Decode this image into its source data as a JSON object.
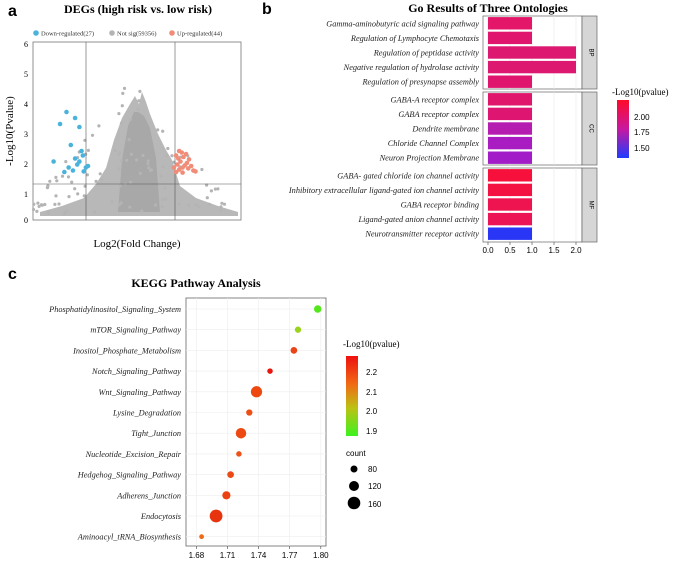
{
  "chart_data": [
    {
      "panel": "a",
      "type": "scatter",
      "title": "DEGs (high risk vs. low risk)",
      "xlabel": "Log2(Fold Change)",
      "ylabel": "-Log10(Pvalue)",
      "ylim": [
        0,
        6
      ],
      "yticks": [
        "0",
        "1",
        "2",
        "3",
        "4",
        "5",
        "6"
      ],
      "legend": [
        {
          "label": "Down-regulated(27)",
          "color": "#4ab3dc"
        },
        {
          "label": "Not sig(59356)",
          "color": "#b4b4b4"
        },
        {
          "label": "Up-regulated(44)",
          "color": "#f08c78"
        }
      ],
      "up_points": [
        [
          1.05,
          1.4
        ],
        [
          1.12,
          1.48
        ],
        [
          1.2,
          1.55
        ],
        [
          1.08,
          1.65
        ],
        [
          1.25,
          1.62
        ],
        [
          1.15,
          1.75
        ],
        [
          1.3,
          1.7
        ],
        [
          1.1,
          1.85
        ],
        [
          1.22,
          1.9
        ],
        [
          1.35,
          1.82
        ],
        [
          1.05,
          1.95
        ],
        [
          1.18,
          2.05
        ],
        [
          1.28,
          2.0
        ],
        [
          1.4,
          1.6
        ],
        [
          1.12,
          2.1
        ],
        [
          1.0,
          1.55
        ],
        [
          1.33,
          1.52
        ],
        [
          1.45,
          1.45
        ],
        [
          1.2,
          1.38
        ],
        [
          1.5,
          1.42
        ]
      ],
      "down_points": [
        [
          -1.5,
          3.4
        ],
        [
          -1.3,
          3.2
        ],
        [
          -1.2,
          2.9
        ],
        [
          -1.65,
          3.0
        ],
        [
          -1.4,
          2.3
        ],
        [
          -1.15,
          2.1
        ],
        [
          -1.8,
          1.75
        ],
        [
          -1.25,
          1.65
        ],
        [
          -1.05,
          1.55
        ],
        [
          -1.35,
          1.45
        ],
        [
          -1.1,
          1.42
        ],
        [
          -1.2,
          1.75
        ],
        [
          -1.45,
          1.55
        ],
        [
          -1.0,
          1.6
        ],
        [
          -1.3,
          1.85
        ],
        [
          -1.55,
          1.4
        ],
        [
          -1.12,
          1.95
        ]
      ]
    },
    {
      "panel": "b",
      "type": "bar",
      "title": "Go Results of Three Ontologies",
      "xticks": [
        "0.0",
        "0.5",
        "1.0",
        "1.5",
        "2.0"
      ],
      "xlim": [
        0,
        2.2
      ],
      "colorbar_title": "-Log10(pvalue)",
      "colorbar_ticks": [
        "2.00",
        "1.75",
        "1.50"
      ],
      "groups": [
        {
          "label": "BP",
          "items": [
            {
              "term": "Gamma-aminobutyric acid signaling pathway",
              "value": 1.0,
              "color": "#e4166a"
            },
            {
              "term": "Regulation of Lymphocyte Chemotaxis",
              "value": 1.0,
              "color": "#e0166e"
            },
            {
              "term": "Regulation of peptidase activity",
              "value": 2.0,
              "color": "#dc1870"
            },
            {
              "term": "Negative regulation of hydrolase activity",
              "value": 2.0,
              "color": "#dc1870"
            },
            {
              "term": "Regulation of presynapse assembly",
              "value": 1.0,
              "color": "#e0166e"
            }
          ]
        },
        {
          "label": "CC",
          "items": [
            {
              "term": "GABA-A receptor complex",
              "value": 1.0,
              "color": "#e0166c"
            },
            {
              "term": "GABA receptor complex",
              "value": 1.0,
              "color": "#de1672"
            },
            {
              "term": "Dendrite membrane",
              "value": 1.0,
              "color": "#b51cb0"
            },
            {
              "term": "Chloride Channel Complex",
              "value": 1.0,
              "color": "#a81cc2"
            },
            {
              "term": "Neuron Projection Membrane",
              "value": 1.0,
              "color": "#a21dc8"
            }
          ]
        },
        {
          "label": "MF",
          "items": [
            {
              "term": "GABA- gated chloride ion channel activity",
              "value": 1.0,
              "color": "#f8103c"
            },
            {
              "term": "Inhibitory extracellular ligand-gated ion channel activity",
              "value": 1.0,
              "color": "#f41242"
            },
            {
              "term": "GABA receptor binding",
              "value": 1.0,
              "color": "#ee1450"
            },
            {
              "term": "Ligand-gated anion channel activity",
              "value": 1.0,
              "color": "#ec1454"
            },
            {
              "term": "Neurotransmitter receptor activity",
              "value": 1.0,
              "color": "#2a36f6"
            }
          ]
        }
      ]
    },
    {
      "panel": "c",
      "type": "scatter",
      "title": "KEGG Pathway Analysis",
      "xlim": [
        1.68,
        1.8
      ],
      "xticks": [
        1.68,
        1.71,
        1.74,
        1.77,
        1.8
      ],
      "xtick_labels": [
        "1.68",
        "1.71",
        "1.74",
        "1.77",
        "1.80"
      ],
      "colorbar_title": "-Log10(pvalue)",
      "colorbar_ticks": [
        "2.2",
        "2.1",
        "2.0",
        "1.9"
      ],
      "size_legend_title": "count",
      "size_legend": [
        "80",
        "120",
        "160"
      ],
      "points": [
        {
          "pathway": "Phosphatidylinositol_Signaling_System",
          "x": 1.797,
          "count": 100,
          "color": "#55e61e"
        },
        {
          "pathway": "mTOR_Signaling_Pathway",
          "x": 1.778,
          "count": 85,
          "color": "#9ad21c"
        },
        {
          "pathway": "Inositol_Phosphate_Metabolism",
          "x": 1.774,
          "count": 90,
          "color": "#ea4418"
        },
        {
          "pathway": "Notch_Signaling_Pathway",
          "x": 1.751,
          "count": 75,
          "color": "#e8160e"
        },
        {
          "pathway": "Wnt_Signaling_Pathway",
          "x": 1.738,
          "count": 150,
          "color": "#ec4810"
        },
        {
          "pathway": "Lysine_Degradation",
          "x": 1.731,
          "count": 85,
          "color": "#ec4e14"
        },
        {
          "pathway": "Tight_Junction",
          "x": 1.723,
          "count": 140,
          "color": "#ec4a12"
        },
        {
          "pathway": "Nucleotide_Excision_Repair",
          "x": 1.721,
          "count": 75,
          "color": "#ee5218"
        },
        {
          "pathway": "Hedgehog_Signaling_Pathway",
          "x": 1.713,
          "count": 90,
          "color": "#ec4a14"
        },
        {
          "pathway": "Adherens_Junction",
          "x": 1.709,
          "count": 110,
          "color": "#ec4212"
        },
        {
          "pathway": "Endocytosis",
          "x": 1.699,
          "count": 170,
          "color": "#e8340e"
        },
        {
          "pathway": "Aminoacyl_tRNA_Biosynthesis",
          "x": 1.685,
          "count": 65,
          "color": "#ef6a16"
        }
      ]
    }
  ],
  "panel_labels": {
    "a": "a",
    "b": "b",
    "c": "c"
  }
}
